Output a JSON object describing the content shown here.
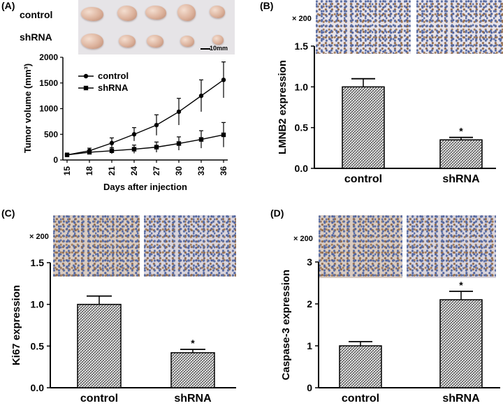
{
  "panels": {
    "A": {
      "label": "(A)",
      "row_labels": [
        "control",
        "shRNA"
      ],
      "scale_label": "10mm"
    },
    "B": {
      "label": "(B)",
      "magnification": "× 200"
    },
    "C": {
      "label": "(C)",
      "magnification": "× 200"
    },
    "D": {
      "label": "(D)",
      "magnification": "× 200"
    }
  },
  "colors": {
    "ink": "#000000",
    "bar_fill": "#bdbdbd",
    "tissue_blue": "#5b6fa3",
    "tissue_brown": "#8e6b4f"
  },
  "chart_data": [
    {
      "id": "A",
      "type": "line",
      "title": "",
      "xlabel": "Days after injection",
      "ylabel": "Tumor volume (mm³)",
      "x": [
        15,
        18,
        21,
        24,
        27,
        30,
        33,
        36
      ],
      "xlim": [
        15,
        36
      ],
      "ylim": [
        0,
        2000
      ],
      "yticks": [
        0,
        500,
        1000,
        1500,
        2000
      ],
      "legend": "top-left",
      "series": [
        {
          "name": "control",
          "marker": "circle",
          "values": [
            100,
            180,
            330,
            500,
            680,
            940,
            1250,
            1560
          ],
          "errors": [
            20,
            50,
            100,
            130,
            200,
            260,
            310,
            350
          ]
        },
        {
          "name": "shRNA",
          "marker": "square",
          "values": [
            100,
            150,
            180,
            210,
            250,
            320,
            400,
            490
          ],
          "errors": [
            20,
            40,
            60,
            80,
            100,
            130,
            170,
            240
          ]
        }
      ]
    },
    {
      "id": "B",
      "type": "bar",
      "ylabel": "LMNB2 expression",
      "categories": [
        "control",
        "shRNA"
      ],
      "values": [
        1.0,
        0.35
      ],
      "errors": [
        0.1,
        0.03
      ],
      "significance": [
        "",
        "*"
      ],
      "ylim": [
        0,
        1.5
      ],
      "yticks": [
        "0.0",
        "0.5",
        "1.0",
        "1.5"
      ]
    },
    {
      "id": "C",
      "type": "bar",
      "ylabel": "Ki67 expression",
      "categories": [
        "control",
        "shRNA"
      ],
      "values": [
        1.0,
        0.42
      ],
      "errors": [
        0.1,
        0.04
      ],
      "significance": [
        "",
        "*"
      ],
      "ylim": [
        0,
        1.5
      ],
      "yticks": [
        "0.0",
        "0.5",
        "1.0",
        "1.5"
      ]
    },
    {
      "id": "D",
      "type": "bar",
      "ylabel": "Caspase-3 expression",
      "categories": [
        "control",
        "shRNA"
      ],
      "values": [
        1.0,
        2.1
      ],
      "errors": [
        0.1,
        0.2
      ],
      "significance": [
        "",
        "*"
      ],
      "ylim": [
        0,
        3
      ],
      "yticks": [
        "0",
        "1",
        "2",
        "3"
      ]
    }
  ]
}
